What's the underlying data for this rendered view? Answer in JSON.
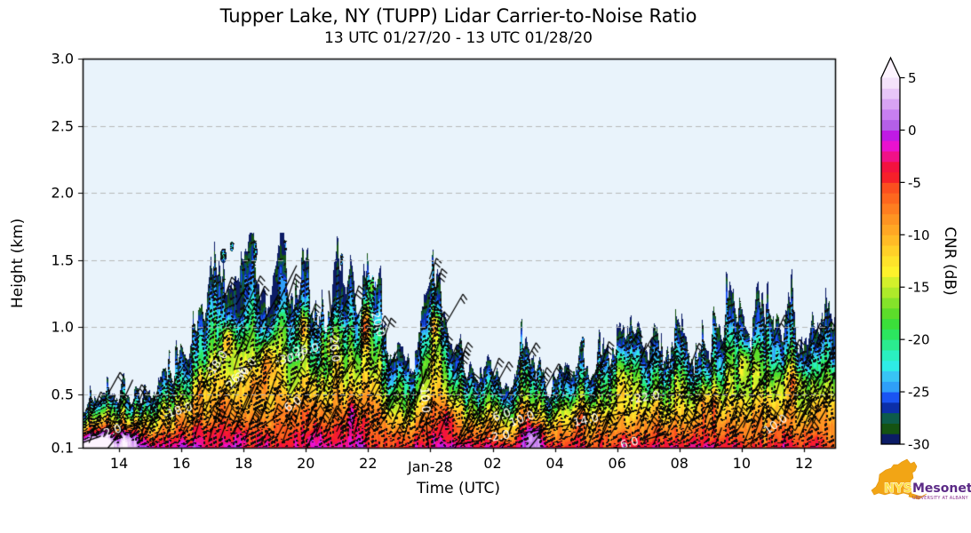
{
  "chart_data": {
    "type": "filled_contour_time_height",
    "title": "Tupper Lake, NY (TUPP) Lidar Carrier-to-Noise Ratio",
    "subtitle": "13 UTC 01/27/20 - 13 UTC 01/28/20",
    "xlabel": "Time (UTC)",
    "ylabel": "Height (km)",
    "xlim_hours_utc": [
      12.83,
      37.0
    ],
    "ylim_km": [
      0.1,
      3.0
    ],
    "x_ticks": [
      {
        "hour": 14,
        "label": "14"
      },
      {
        "hour": 16,
        "label": "16"
      },
      {
        "hour": 18,
        "label": "18"
      },
      {
        "hour": 20,
        "label": "20"
      },
      {
        "hour": 22,
        "label": "22"
      },
      {
        "hour": 24,
        "label": "Jan-28"
      },
      {
        "hour": 26,
        "label": "02"
      },
      {
        "hour": 28,
        "label": "04"
      },
      {
        "hour": 30,
        "label": "06"
      },
      {
        "hour": 32,
        "label": "08"
      },
      {
        "hour": 34,
        "label": "10"
      },
      {
        "hour": 36,
        "label": "12"
      }
    ],
    "y_ticks": [
      {
        "km": 0.1,
        "label": "0.1"
      },
      {
        "km": 0.5,
        "label": "0.5"
      },
      {
        "km": 1.0,
        "label": "1.0"
      },
      {
        "km": 1.5,
        "label": "1.5"
      },
      {
        "km": 2.0,
        "label": "2.0"
      },
      {
        "km": 2.5,
        "label": "2.5"
      },
      {
        "km": 3.0,
        "label": "3.0"
      }
    ],
    "grid_heights_km": [
      0.5,
      1.0,
      1.5,
      2.0,
      2.5
    ],
    "background_color": "#e9f3fb",
    "colorbar": {
      "label": "CNR (dB)",
      "vmin": -30,
      "vmax": 5,
      "step_db": 1,
      "tick_values": [
        -30,
        -25,
        -20,
        -15,
        -10,
        -5,
        0,
        5
      ],
      "colors": [
        "#0c1c66",
        "#155312",
        "#0d5c4a",
        "#0c2fa8",
        "#1a54f2",
        "#2f9ff8",
        "#38c4f5",
        "#2eebe6",
        "#2af0c0",
        "#2beb8f",
        "#2ce65f",
        "#3bdf3a",
        "#5cdd2a",
        "#84e32a",
        "#aeea2a",
        "#d3f02b",
        "#fdf22b",
        "#fee32a",
        "#ffd028",
        "#ffbb26",
        "#ffa724",
        "#fe9422",
        "#fe7e20",
        "#fd671e",
        "#fb4f1f",
        "#f6202a",
        "#f3123f",
        "#f01187",
        "#e912cf",
        "#bf1ae5",
        "#b45fe8",
        "#c77ff0",
        "#d8a3f4",
        "#e8c6f8",
        "#f4e2fb"
      ],
      "over_color": "#fdf4fe"
    },
    "field": {
      "time_start_hour": 13.0,
      "time_step_hour": 0.25,
      "echo_top_km": [
        0.45,
        0.5,
        0.46,
        0.52,
        0.55,
        0.48,
        0.42,
        0.45,
        0.5,
        0.55,
        0.8,
        0.62,
        0.85,
        0.72,
        1.05,
        0.95,
        1.3,
        1.42,
        1.3,
        1.35,
        1.25,
        1.6,
        1.32,
        1.18,
        1.35,
        1.62,
        1.2,
        1.28,
        1.38,
        1.12,
        1.05,
        1.22,
        1.42,
        1.28,
        1.38,
        1.1,
        1.45,
        1.35,
        0.95,
        0.8,
        0.85,
        0.7,
        0.8,
        1.3,
        1.68,
        1.35,
        1.1,
        0.9,
        0.8,
        0.65,
        0.6,
        0.7,
        0.65,
        0.6,
        0.55,
        0.65,
        0.9,
        0.75,
        0.65,
        0.6,
        0.65,
        0.72,
        0.6,
        0.68,
        0.62,
        0.7,
        0.95,
        0.88,
        1.1,
        0.95,
        1.05,
        0.8,
        0.72,
        0.85,
        0.78,
        0.9,
        0.82,
        0.95,
        0.78,
        0.85,
        0.8,
        0.95,
        1.15,
        1.0,
        1.1,
        0.92,
        1.2,
        1.05,
        1.15,
        0.95,
        1.25,
        0.9,
        0.95,
        1.0,
        1.1,
        1.05
      ],
      "surface_cnr_db": [
        4.5,
        4.8,
        4.3,
        3.6,
        2.8,
        2.2,
        2.6,
        1.4,
        -0.5,
        -1.2,
        -1.8,
        -1.5,
        -2.2,
        -2.6,
        -2.0,
        -2.4,
        -3.4,
        -2.8,
        -2.6,
        -3.0,
        -3.5,
        -4.0,
        -3.6,
        -4.2,
        -4.5,
        -3.8,
        -3.2,
        -2.6,
        -2.2,
        -1.8,
        -1.4,
        -2.0,
        -2.6,
        -1.6,
        -0.8,
        -1.4,
        -2.4,
        -3.4,
        -4.4,
        -5.0,
        -5.4,
        -4.8,
        -4.0,
        -3.0,
        -2.0,
        -1.2,
        -0.6,
        -1.0,
        -2.0,
        -2.8,
        -2.2,
        -1.6,
        -2.4,
        -3.2,
        -2.6,
        -3.0,
        -1.0,
        0.8,
        0.2,
        -1.4,
        -2.8,
        -3.6,
        -4.2,
        -3.8,
        -4.4,
        -4.8,
        -4.2,
        -4.6,
        -5.0,
        -4.4,
        -4.8,
        -4.2,
        -3.6,
        -2.8,
        -2.2,
        -2.8,
        -3.4,
        -2.6,
        -1.8,
        -2.6,
        -3.4,
        -4.2,
        -4.8,
        -4.4,
        -5.0,
        -4.6,
        -4.2,
        -4.8,
        -4.4,
        -3.8,
        -3.2,
        -3.8,
        -4.4,
        -4.0,
        -3.6,
        -4.0
      ],
      "gradient_note": "CNR decreases from the surface value to -30 dB at echo top"
    },
    "detached_echoes": [
      {
        "hour": 17.35,
        "km": 1.53,
        "rt": 0.1,
        "rz": 0.055
      },
      {
        "hour": 17.62,
        "km": 1.6,
        "rt": 0.06,
        "rz": 0.04
      },
      {
        "hour": 18.35,
        "km": 1.56,
        "rt": 0.09,
        "rz": 0.09
      },
      {
        "hour": 19.32,
        "km": 1.58,
        "rt": 0.06,
        "rz": 0.07
      },
      {
        "hour": 21.15,
        "km": 1.5,
        "rt": 0.05,
        "rz": 0.05
      },
      {
        "hour": 28.9,
        "km": 0.88,
        "rt": 0.05,
        "rz": 0.05
      },
      {
        "hour": 30.2,
        "km": 0.95,
        "rt": 0.04,
        "rz": 0.06
      },
      {
        "hour": 30.75,
        "km": 0.82,
        "rt": 0.045,
        "rz": 0.16
      },
      {
        "hour": 34.0,
        "km": 1.08,
        "rt": 0.05,
        "rz": 0.04
      }
    ],
    "cnr_enhancements": [
      {
        "hour": 17.5,
        "km": 0.9,
        "amp": 11,
        "rt": 0.18,
        "rz": 0.12
      },
      {
        "hour": 18.8,
        "km": 0.75,
        "amp": 9,
        "rt": 0.25,
        "rz": 0.16
      },
      {
        "hour": 19.9,
        "km": 1.0,
        "amp": 11,
        "rt": 0.16,
        "rz": 0.12
      },
      {
        "hour": 20.7,
        "km": 0.9,
        "amp": 9,
        "rt": 0.2,
        "rz": 0.15
      },
      {
        "hour": 21.9,
        "km": 1.0,
        "amp": 16,
        "rt": 0.2,
        "rz": 0.16
      },
      {
        "hour": 22.1,
        "km": 1.3,
        "amp": 12,
        "rt": 0.12,
        "rz": 0.1
      },
      {
        "hour": 24.15,
        "km": 1.0,
        "amp": 12,
        "rt": 0.12,
        "rz": 0.12
      },
      {
        "hour": 24.0,
        "km": 1.45,
        "amp": 18,
        "rt": 0.05,
        "rz": 0.07
      },
      {
        "hour": 17.9,
        "km": 1.15,
        "amp": -7,
        "rt": 0.2,
        "rz": 0.15
      },
      {
        "hour": 19.0,
        "km": 1.2,
        "amp": -6,
        "rt": 0.25,
        "rz": 0.15
      },
      {
        "hour": 21.0,
        "km": 1.25,
        "amp": -5,
        "rt": 0.3,
        "rz": 0.2
      },
      {
        "hour": 18.6,
        "km": 0.55,
        "amp": 5,
        "rt": 0.3,
        "rz": 0.15
      },
      {
        "hour": 30.2,
        "km": 0.6,
        "amp": 6,
        "rt": 0.35,
        "rz": 0.15
      },
      {
        "hour": 34.2,
        "km": 0.75,
        "amp": 8,
        "rt": 0.3,
        "rz": 0.14
      },
      {
        "hour": 35.7,
        "km": 0.6,
        "amp": 7,
        "rt": 0.25,
        "rz": 0.12
      },
      {
        "hour": 33.0,
        "km": 0.45,
        "amp": 5,
        "rt": 0.4,
        "rz": 0.12
      },
      {
        "hour": 29.0,
        "km": 0.35,
        "amp": 4,
        "rt": 0.5,
        "rz": 0.12
      },
      {
        "hour": 16.6,
        "km": 0.55,
        "amp": 6,
        "rt": 0.2,
        "rz": 0.12
      },
      {
        "hour": 13.35,
        "km": 0.14,
        "amp": 7,
        "rt": 0.55,
        "rz": 0.09
      },
      {
        "hour": 14.3,
        "km": 0.17,
        "amp": 5,
        "rt": 0.3,
        "rz": 0.07
      },
      {
        "hour": 27.3,
        "km": 0.2,
        "amp": 6,
        "rt": 0.3,
        "rz": 0.08
      },
      {
        "hour": 24.6,
        "km": 0.3,
        "amp": 5,
        "rt": 0.2,
        "rz": 0.1
      },
      {
        "hour": 21.5,
        "km": 0.35,
        "amp": 5,
        "rt": 0.15,
        "rz": 0.1
      }
    ],
    "contour_line_labels": [
      {
        "hour": 13.8,
        "km": 0.22,
        "text": "2.0",
        "rot": -20
      },
      {
        "hour": 15.9,
        "km": 0.37,
        "text": "-18.0",
        "rot": -18
      },
      {
        "hour": 17.15,
        "km": 0.72,
        "text": "-18.0",
        "rot": -55
      },
      {
        "hour": 17.8,
        "km": 0.62,
        "text": "26.0",
        "rot": -50
      },
      {
        "hour": 18.1,
        "km": 0.68,
        "text": "30.0",
        "rot": -50
      },
      {
        "hour": 19.6,
        "km": 0.42,
        "text": "6.0",
        "rot": -35
      },
      {
        "hour": 19.95,
        "km": 0.82,
        "text": "-26.0",
        "rot": -12
      },
      {
        "hour": 19.5,
        "km": 0.76,
        "text": "-30.0",
        "rot": -10
      },
      {
        "hour": 20.9,
        "km": 0.85,
        "text": "-26.0",
        "rot": 85
      },
      {
        "hour": 22.3,
        "km": 1.02,
        "text": "20.0",
        "rot": 75
      },
      {
        "hour": 23.8,
        "km": 0.47,
        "text": "-10.0",
        "rot": 85
      },
      {
        "hour": 26.3,
        "km": 0.34,
        "text": "6.0",
        "rot": -20
      },
      {
        "hour": 26.95,
        "km": 0.31,
        "text": "10.0",
        "rot": -20
      },
      {
        "hour": 26.2,
        "km": 0.18,
        "text": "-2.0",
        "rot": -10
      },
      {
        "hour": 29.0,
        "km": 0.3,
        "text": "14.0",
        "rot": -12
      },
      {
        "hour": 30.9,
        "km": 0.47,
        "text": "-22.0",
        "rot": -10
      },
      {
        "hour": 30.4,
        "km": 0.13,
        "text": "6.0",
        "rot": -15
      },
      {
        "hour": 35.1,
        "km": 0.27,
        "text": "10.0",
        "rot": -35
      }
    ],
    "overlay": {
      "wind_barbs": true,
      "dashed_contours_every_db": 3
    }
  },
  "logo": {
    "org": "NYS",
    "name": "Mesonet",
    "subtext": "UNIVERSITY AT ALBANY"
  }
}
